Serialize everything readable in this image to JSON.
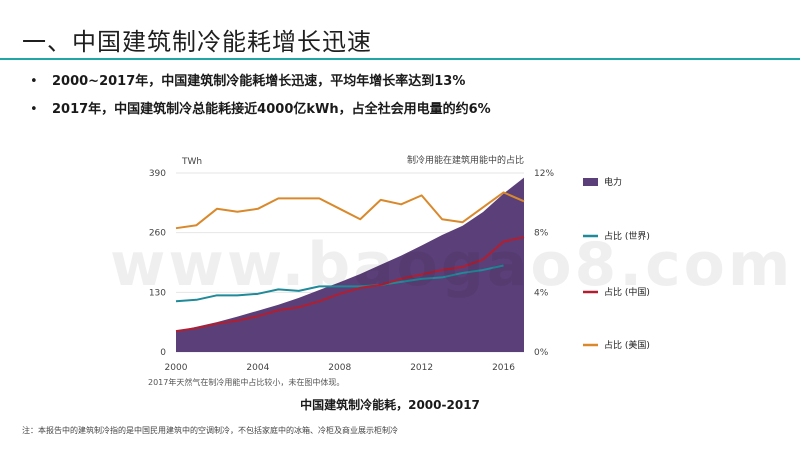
{
  "slide": {
    "title": "一、中国建筑制冷能耗增长迅速",
    "bullets": [
      "2000~2017年，中国建筑制冷能耗增长迅速，平均年增长率达到13%",
      "2017年，中国建筑制冷总能耗接近4000亿kWh，占全社会用电量的约6%"
    ],
    "bullet_symbol": "•",
    "caption": "中国建筑制冷能耗，2000-2017",
    "footnote": "注：本报告中的建筑制冷指的是中国民用建筑中的空调制冷，不包括家庭中的冰箱、冷柜及商业展示柜制冷",
    "chart_note": "2017年天然气在制冷用能中占比较小，未在图中体现。",
    "watermark": "www.baogao8.com"
  },
  "colors": {
    "accent_rule": "#20a6a6",
    "electricity": "#5b3f78",
    "share_world": "#1f8a99",
    "share_china": "#b21e2f",
    "share_us": "#d9892b",
    "grid": "#e6e6e6",
    "axis_text": "#444444"
  },
  "chart_data": {
    "type": "area",
    "left_unit": "TWh",
    "right_axis_title": "制冷用能在建筑用能中的占比",
    "x_ticks": [
      2000,
      2004,
      2008,
      2012,
      2016
    ],
    "xlim": [
      2000,
      2017
    ],
    "left_ylim": [
      0,
      390
    ],
    "left_ticks": [
      0,
      130,
      260,
      390
    ],
    "right_ylim": [
      0,
      12
    ],
    "right_ticks": [
      0,
      4,
      8,
      12
    ],
    "right_tick_labels": [
      "0%",
      "4%",
      "8%",
      "12%"
    ],
    "series": [
      {
        "name": "电力",
        "kind": "area",
        "axis": "left",
        "color_key": "electricity",
        "x": [
          2000,
          2001,
          2002,
          2003,
          2004,
          2005,
          2006,
          2007,
          2008,
          2009,
          2010,
          2011,
          2012,
          2013,
          2014,
          2015,
          2016,
          2017
        ],
        "y": [
          45,
          55,
          65,
          77,
          90,
          103,
          118,
          135,
          152,
          170,
          190,
          210,
          232,
          255,
          275,
          305,
          345,
          380
        ]
      },
      {
        "name": "占比 (世界)",
        "kind": "line",
        "axis": "right",
        "color_key": "share_world",
        "x": [
          2000,
          2001,
          2002,
          2003,
          2004,
          2005,
          2006,
          2007,
          2008,
          2009,
          2010,
          2011,
          2012,
          2013,
          2014,
          2015,
          2016
        ],
        "y": [
          3.4,
          3.5,
          3.8,
          3.8,
          3.9,
          4.2,
          4.1,
          4.4,
          4.4,
          4.4,
          4.5,
          4.7,
          4.9,
          5.0,
          5.3,
          5.5,
          5.8
        ]
      },
      {
        "name": "占比 (中国)",
        "kind": "line",
        "axis": "right",
        "color_key": "share_china",
        "x": [
          2000,
          2001,
          2002,
          2003,
          2004,
          2005,
          2006,
          2007,
          2008,
          2009,
          2010,
          2011,
          2012,
          2013,
          2014,
          2015,
          2016,
          2017
        ],
        "y": [
          1.4,
          1.6,
          1.9,
          2.1,
          2.4,
          2.8,
          3.0,
          3.4,
          3.9,
          4.3,
          4.5,
          4.9,
          5.2,
          5.5,
          5.7,
          6.2,
          7.4,
          7.7
        ]
      },
      {
        "name": "占比 (美国)",
        "kind": "line",
        "axis": "right",
        "color_key": "share_us",
        "x": [
          2000,
          2001,
          2002,
          2003,
          2004,
          2005,
          2006,
          2007,
          2008,
          2009,
          2010,
          2011,
          2012,
          2013,
          2014,
          2015,
          2016,
          2017
        ],
        "y": [
          8.3,
          8.5,
          9.6,
          9.4,
          9.6,
          10.3,
          10.3,
          10.3,
          9.6,
          8.9,
          10.2,
          9.9,
          10.5,
          8.9,
          8.7,
          9.7,
          10.7,
          10.1
        ]
      }
    ],
    "legend_position": "right",
    "grid": true
  }
}
